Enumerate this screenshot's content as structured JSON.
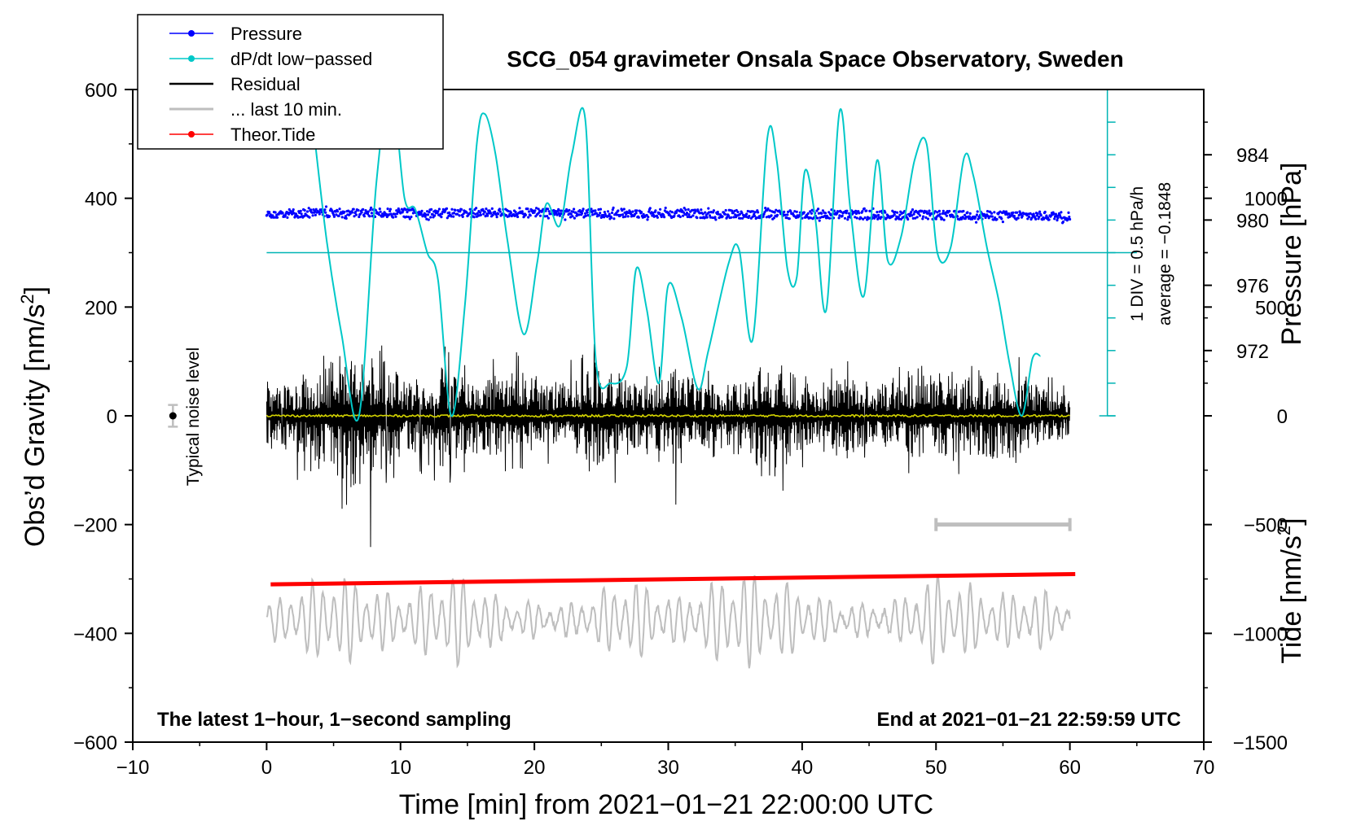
{
  "chart_data": {
    "type": "line",
    "title": "SCG_054 gravimeter Onsala Space Observatory, Sweden",
    "xlabel": "Time [min] from 2021−01−21 22:00:00 UTC",
    "xlim": [
      -10,
      70
    ],
    "x_ticks": [
      -10,
      0,
      10,
      20,
      30,
      40,
      50,
      60,
      70
    ],
    "x_tick_labels": [
      "−10",
      "0",
      "10",
      "20",
      "30",
      "40",
      "50",
      "60",
      "70"
    ],
    "ylabel_left": "Obs’d Gravity [nm/s²]",
    "ylabel_left_base": "Obs’d Gravity [nm/s",
    "ylabel_left_sup": "2",
    "ylabel_left_end": "]",
    "ylim_left": [
      -600,
      600
    ],
    "y_left_ticks": [
      -600,
      -400,
      -200,
      0,
      200,
      400,
      600
    ],
    "y_left_tick_labels": [
      "−600",
      "−400",
      "−200",
      "0",
      "200",
      "400",
      "600"
    ],
    "ylabel_pressure": "Pressure [hPa]",
    "pressure_ticks": [
      972,
      976,
      980,
      984
    ],
    "pressure_tick_labels": [
      "972",
      "976",
      "980",
      "984"
    ],
    "pressure_scale": {
      "gravity_at_972": 120,
      "gravity_per_hpa": 30
    },
    "ylabel_tide": "Tide [nm/s²]",
    "ylabel_tide_base": "Tide [nm/s",
    "ylabel_tide_sup": "2",
    "ylabel_tide_end": "]",
    "tide_ticks": [
      -1500,
      -1000,
      -500,
      0,
      500,
      1000
    ],
    "tide_tick_labels": [
      "−1500",
      "−1000",
      "−500",
      "0",
      "500",
      "1000"
    ],
    "tide_scale": {
      "tide_at_gravity_minus600": -1500,
      "tide_per_gravity": 2.5
    },
    "legend": {
      "position": "top-left",
      "entries": [
        {
          "label": "Pressure",
          "color": "#0000ff",
          "marker": true
        },
        {
          "label": "dP/dt low−passed",
          "color": "#00c8c8",
          "marker": true
        },
        {
          "label": "Residual",
          "color": "#000000",
          "marker": false
        },
        {
          "label": "... last 10 min.",
          "color": "#bebebe",
          "marker": false
        },
        {
          "label": "Theor.Tide",
          "color": "#ff0000",
          "marker": true
        }
      ]
    },
    "annotations": {
      "bottom_left": "The latest 1−hour, 1−second sampling",
      "bottom_right": "End at 2021−01−21 22:59:59 UTC",
      "noise": "Typical noise level",
      "div": "1 DIV = 0.5 hPa/h",
      "average": "average = −0.1848"
    },
    "noise_level": {
      "x": -7,
      "y": 0,
      "error": 20
    },
    "last10_bar": {
      "x_start": 50,
      "x_end": 60,
      "y": -200
    },
    "dpdt_zero_line": 300,
    "dpdt_scale": {
      "x": 62.8,
      "y_bottom": 0,
      "y_top": 600,
      "division": 60
    },
    "series": [
      {
        "name": "Pressure",
        "color": "#0000ff",
        "level": 370,
        "spread": 8,
        "x": [
          0,
          10,
          20,
          30,
          40,
          50,
          60
        ],
        "values": [
          372,
          373,
          373,
          372,
          370,
          369,
          367
        ]
      },
      {
        "name": "dP/dt low−passed",
        "color": "#00c8c8",
        "x": [
          3.5,
          4.5,
          5.6,
          6.9,
          8.2,
          9.3,
          10.3,
          11.1,
          12.0,
          12.8,
          13.8,
          14.8,
          15.7,
          16.3,
          17.1,
          18.0,
          19.2,
          20.2,
          20.9,
          21.9,
          22.8,
          23.8,
          24.6,
          25.7,
          26.9,
          27.6,
          28.4,
          29.3,
          30.0,
          31.0,
          32.2,
          33.0,
          34.5,
          35.3,
          36.3,
          37.4,
          38.1,
          38.9,
          39.6,
          40.2,
          41.0,
          41.8,
          42.8,
          43.6,
          44.6,
          45.6,
          46.4,
          47.4,
          48.4,
          49.3,
          50.1,
          51.1,
          52.1,
          52.8,
          53.8,
          54.7,
          55.5,
          56.4,
          57.2,
          57.8
        ],
        "values": [
          530,
          320,
          150,
          0,
          430,
          600,
          400,
          380,
          300,
          250,
          0,
          200,
          500,
          555,
          480,
          320,
          150,
          280,
          390,
          350,
          480,
          545,
          100,
          60,
          90,
          270,
          195,
          60,
          240,
          180,
          50,
          120,
          280,
          305,
          140,
          510,
          470,
          270,
          255,
          450,
          360,
          195,
          560,
          380,
          220,
          470,
          285,
          330,
          470,
          500,
          300,
          310,
          475,
          440,
          310,
          210,
          95,
          0,
          105,
          110
        ]
      },
      {
        "name": "Residual",
        "color": "#000000",
        "x": [
          0,
          4,
          6.2,
          9,
          10.5,
          13,
          16,
          19,
          22,
          25,
          28,
          31,
          34,
          36,
          38,
          41,
          43,
          46,
          49.5,
          52,
          55,
          58,
          60
        ],
        "values": [
          50,
          80,
          145,
          100,
          60,
          90,
          70,
          80,
          60,
          95,
          60,
          75,
          55,
          70,
          105,
          50,
          80,
          55,
          90,
          70,
          85,
          55,
          40
        ]
      },
      {
        "name": "Mean",
        "color": "#d4d400",
        "level": 0
      },
      {
        "name": "... last 10 min.",
        "color": "#bebebe",
        "offset": -375,
        "x": [
          0,
          5,
          10,
          14,
          18,
          23,
          27,
          31,
          35,
          39,
          43,
          47,
          50,
          54,
          58,
          60
        ],
        "values": [
          30,
          90,
          45,
          90,
          35,
          30,
          80,
          40,
          95,
          70,
          30,
          35,
          90,
          50,
          55,
          30
        ]
      },
      {
        "name": "Theor.Tide",
        "color": "#ff0000",
        "x": [
          0.3,
          60.4
        ],
        "values": [
          -310,
          -291
        ]
      }
    ]
  }
}
